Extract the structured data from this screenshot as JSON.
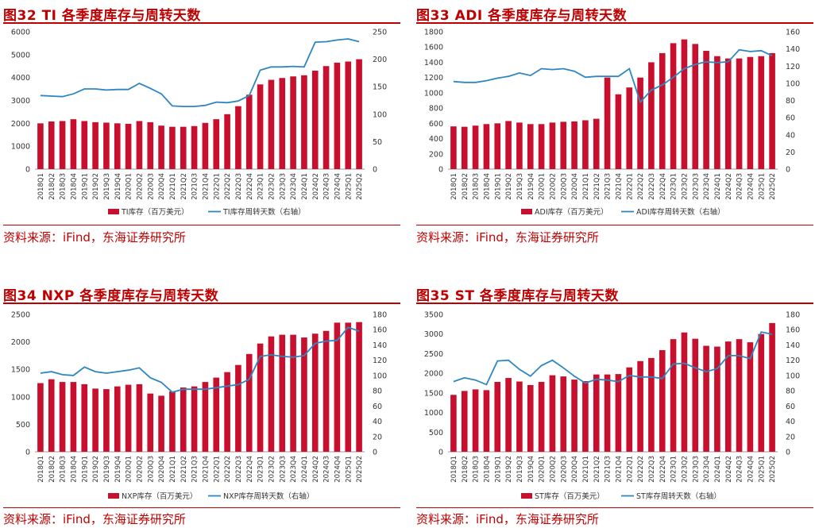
{
  "source_text": "资料来源：iFind，东海证券研究所",
  "colors": {
    "bar": "#c8102e",
    "line": "#2e86c1",
    "title": "#c00000"
  },
  "chart_data": [
    {
      "type": "bar",
      "title": "图32  TI 各季度库存与周转天数",
      "categories": [
        "2018Q1",
        "2018Q2",
        "2018Q3",
        "2018Q4",
        "2019Q1",
        "2019Q2",
        "2019Q3",
        "2019Q4",
        "2020Q1",
        "2020Q2",
        "2020Q3",
        "2020Q4",
        "2021Q1",
        "2021Q2",
        "2021Q3",
        "2021Q4",
        "2022Q1",
        "2022Q2",
        "2022Q3",
        "2022Q4",
        "2023Q1",
        "2023Q2",
        "2023Q3",
        "2023Q4",
        "2024Q1",
        "2024Q2",
        "2024Q3",
        "2024Q4",
        "2025Q1",
        "2025Q2"
      ],
      "series": [
        {
          "name": "TI库存（百万美元）",
          "type": "bar",
          "axis": "left",
          "values": [
            2000,
            2080,
            2100,
            2180,
            2100,
            2050,
            2030,
            2000,
            1980,
            2100,
            2050,
            1900,
            1850,
            1850,
            1880,
            2020,
            2180,
            2400,
            2750,
            3250,
            3700,
            3900,
            3980,
            4050,
            4100,
            4300,
            4500,
            4650,
            4700,
            4800
          ]
        },
        {
          "name": "TI库存周转天数（右轴）",
          "type": "line",
          "axis": "right",
          "values": [
            134,
            133,
            132,
            137,
            146,
            146,
            144,
            145,
            145,
            156,
            147,
            137,
            115,
            114,
            114,
            116,
            122,
            121,
            124,
            134,
            180,
            186,
            186,
            187,
            186,
            231,
            232,
            235,
            237,
            232
          ]
        }
      ],
      "ylim_left": [
        0,
        6000
      ],
      "yticks_left": [
        0,
        1000,
        2000,
        3000,
        4000,
        5000,
        6000
      ],
      "ylim_right": [
        0,
        250
      ],
      "yticks_right": [
        0,
        50,
        100,
        150,
        200,
        250
      ]
    },
    {
      "type": "bar",
      "title": "图33  ADI 各季度库存与周转天数",
      "categories": [
        "2018Q1",
        "2018Q2",
        "2018Q3",
        "2018Q4",
        "2019Q1",
        "2019Q2",
        "2019Q3",
        "2019Q4",
        "2020Q1",
        "2020Q2",
        "2020Q3",
        "2020Q4",
        "2021Q1",
        "2021Q2",
        "2021Q3",
        "2021Q4",
        "2022Q1",
        "2022Q2",
        "2022Q3",
        "2022Q4",
        "2023Q1",
        "2023Q2",
        "2023Q3",
        "2023Q4",
        "2024Q1",
        "2024Q2",
        "2024Q3",
        "2024Q4",
        "2025Q1",
        "2025Q2"
      ],
      "series": [
        {
          "name": "ADI库存（百万美元）",
          "type": "bar",
          "axis": "left",
          "values": [
            560,
            555,
            570,
            590,
            600,
            630,
            610,
            590,
            590,
            610,
            620,
            625,
            640,
            660,
            1200,
            980,
            1070,
            1200,
            1400,
            1520,
            1650,
            1700,
            1640,
            1550,
            1480,
            1450,
            1450,
            1470,
            1480,
            1520
          ]
        },
        {
          "name": "ADI库存周转天数（右轴）",
          "type": "line",
          "axis": "right",
          "values": [
            102,
            101,
            101,
            103,
            106,
            108,
            112,
            109,
            117,
            116,
            117,
            114,
            107,
            108,
            108,
            108,
            117,
            78,
            92,
            98,
            107,
            117,
            122,
            125,
            124,
            125,
            139,
            137,
            138,
            132
          ]
        }
      ],
      "ylim_left": [
        0,
        1800
      ],
      "yticks_left": [
        0,
        200,
        400,
        600,
        800,
        1000,
        1200,
        1400,
        1600,
        1800
      ],
      "ylim_right": [
        0,
        160
      ],
      "yticks_right": [
        0,
        20,
        40,
        60,
        80,
        100,
        120,
        140,
        160
      ]
    },
    {
      "type": "bar",
      "title": "图34  NXP 各季度库存与周转天数",
      "categories": [
        "2018Q1",
        "2018Q2",
        "2018Q3",
        "2018Q4",
        "2019Q1",
        "2019Q2",
        "2019Q3",
        "2019Q4",
        "2020Q1",
        "2020Q2",
        "2020Q3",
        "2020Q4",
        "2021Q1",
        "2021Q2",
        "2021Q3",
        "2021Q4",
        "2022Q1",
        "2022Q2",
        "2022Q3",
        "2022Q4",
        "2023Q1",
        "2023Q2",
        "2023Q3",
        "2023Q4",
        "2024Q1",
        "2024Q2",
        "2024Q3",
        "2024Q4",
        "2025Q1",
        "2025Q2"
      ],
      "series": [
        {
          "name": "NXP库存（百万美元）",
          "type": "bar",
          "axis": "left",
          "values": [
            1250,
            1320,
            1270,
            1270,
            1230,
            1150,
            1140,
            1190,
            1220,
            1230,
            1060,
            1020,
            1100,
            1170,
            1190,
            1270,
            1350,
            1450,
            1580,
            1780,
            1970,
            2100,
            2130,
            2130,
            2080,
            2150,
            2200,
            2350,
            2350,
            2360
          ]
        },
        {
          "name": "NXP库存周转天数（右轴）",
          "type": "line",
          "axis": "right",
          "values": [
            103,
            105,
            101,
            100,
            111,
            105,
            103,
            105,
            107,
            110,
            97,
            91,
            78,
            82,
            82,
            82,
            84,
            86,
            88,
            95,
            125,
            127,
            125,
            124,
            126,
            142,
            145,
            146,
            163,
            158
          ]
        }
      ],
      "ylim_left": [
        0,
        2500
      ],
      "yticks_left": [
        0,
        500,
        1000,
        1500,
        2000,
        2500
      ],
      "ylim_right": [
        0,
        180
      ],
      "yticks_right": [
        0,
        20,
        40,
        60,
        80,
        100,
        120,
        140,
        160,
        180
      ]
    },
    {
      "type": "bar",
      "title": "图35  ST 各季度库存与周转天数",
      "categories": [
        "2018Q1",
        "2018Q2",
        "2018Q3",
        "2018Q4",
        "2019Q1",
        "2019Q2",
        "2019Q3",
        "2019Q4",
        "2020Q1",
        "2020Q2",
        "2020Q3",
        "2020Q4",
        "2021Q1",
        "2021Q2",
        "2021Q3",
        "2021Q4",
        "2022Q1",
        "2022Q2",
        "2022Q3",
        "2022Q4",
        "2023Q1",
        "2023Q2",
        "2023Q3",
        "2023Q4",
        "2024Q1",
        "2024Q2",
        "2024Q3",
        "2024Q4",
        "2025Q1",
        "2025Q2"
      ],
      "series": [
        {
          "name": "ST库存（百万美元）",
          "type": "bar",
          "axis": "left",
          "values": [
            1450,
            1550,
            1590,
            1570,
            1780,
            1880,
            1790,
            1700,
            1780,
            1950,
            1920,
            1840,
            1800,
            1970,
            1970,
            1980,
            2150,
            2310,
            2390,
            2590,
            2870,
            3040,
            2880,
            2700,
            2680,
            2810,
            2870,
            2790,
            3000,
            3280
          ]
        },
        {
          "name": "ST库存周转天数（右轴）",
          "type": "line",
          "axis": "right",
          "values": [
            92,
            97,
            94,
            88,
            119,
            120,
            108,
            99,
            113,
            120,
            110,
            99,
            90,
            95,
            94,
            92,
            100,
            98,
            98,
            96,
            115,
            116,
            110,
            105,
            109,
            126,
            126,
            122,
            157,
            154
          ]
        }
      ],
      "ylim_left": [
        0,
        3500
      ],
      "yticks_left": [
        0,
        500,
        1000,
        1500,
        2000,
        2500,
        3000,
        3500
      ],
      "ylim_right": [
        0,
        180
      ],
      "yticks_right": [
        0,
        20,
        40,
        60,
        80,
        100,
        120,
        140,
        160,
        180
      ]
    }
  ]
}
